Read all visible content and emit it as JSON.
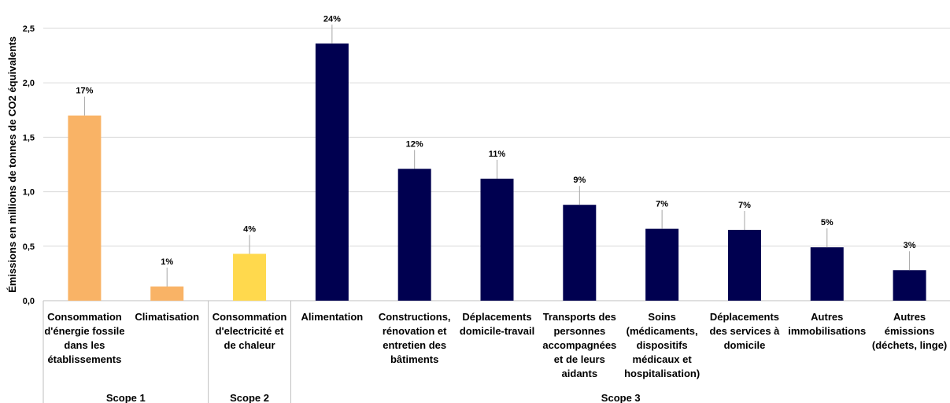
{
  "chart_data": {
    "type": "bar",
    "ylabel": "Émissions en millions de tonnes de CO2 équivalents",
    "ylim": [
      0,
      2.5
    ],
    "yticks": [
      "0,0",
      "0,5",
      "1,0",
      "1,5",
      "2,0",
      "2,5"
    ],
    "ytick_values": [
      0,
      0.5,
      1.0,
      1.5,
      2.0,
      2.5
    ],
    "grid": true,
    "categories": [
      [
        "Consommation",
        "d'énergie fossile",
        "dans les",
        "établissements"
      ],
      [
        "Climatisation"
      ],
      [
        "Consommation",
        "d'electricité et",
        "de chaleur"
      ],
      [
        "Alimentation"
      ],
      [
        "Constructions,",
        "rénovation et",
        "entretien des",
        "bâtiments"
      ],
      [
        "Déplacements",
        "domicile-travail"
      ],
      [
        "Transports des",
        "personnes",
        "accompagnées",
        "et de leurs",
        "aidants"
      ],
      [
        "Soins",
        "(médicaments,",
        "dispositifs",
        "médicaux et",
        "hospitalisation)"
      ],
      [
        "Déplacements",
        "des services à",
        "domicile"
      ],
      [
        "Autres",
        "immobilisations"
      ],
      [
        "Autres",
        "émissions",
        "(déchets, linge)"
      ]
    ],
    "values": [
      1.7,
      0.13,
      0.43,
      2.36,
      1.21,
      1.12,
      0.88,
      0.66,
      0.65,
      0.49,
      0.28
    ],
    "data_labels": [
      "17%",
      "1%",
      "4%",
      "24%",
      "12%",
      "11%",
      "9%",
      "7%",
      "7%",
      "5%",
      "3%"
    ],
    "colors": [
      "#F9B366",
      "#F9B366",
      "#FFD94D",
      "#000050",
      "#000050",
      "#000050",
      "#000050",
      "#000050",
      "#000050",
      "#000050",
      "#000050"
    ],
    "groups": [
      {
        "name": "Scope 1",
        "start": 0,
        "end": 1
      },
      {
        "name": "Scope 2",
        "start": 2,
        "end": 2
      },
      {
        "name": "Scope 3",
        "start": 3,
        "end": 10
      }
    ]
  }
}
